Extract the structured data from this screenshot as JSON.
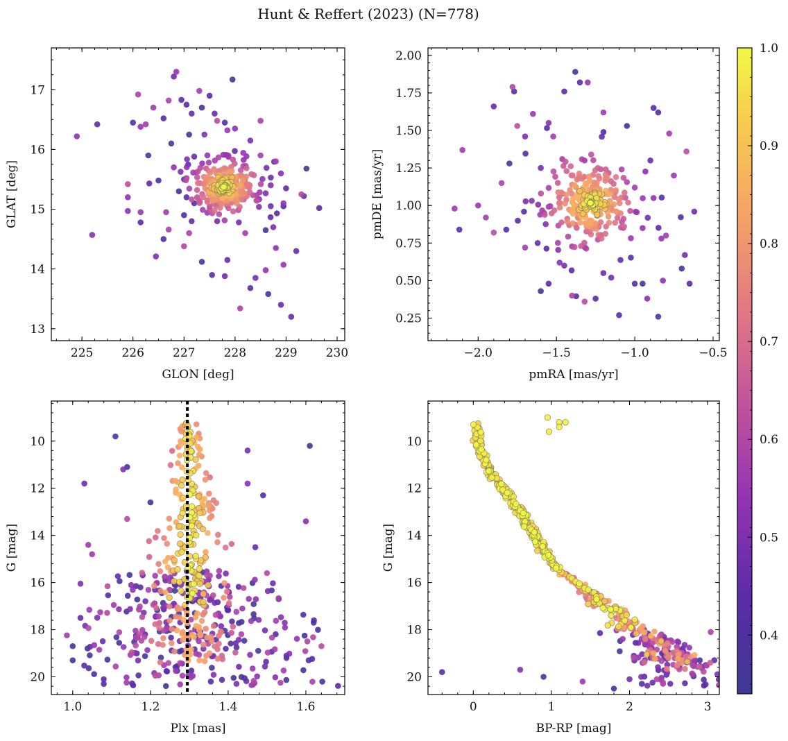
{
  "figure": {
    "title": "Hunt & Reffert (2023) (N=778)",
    "colorbar": {
      "min": 0.34,
      "max": 1.0,
      "ticks": [
        0.4,
        0.5,
        0.6,
        0.7,
        0.8,
        0.9,
        1.0
      ],
      "tick_labels": [
        "0.4",
        "0.5",
        "0.6",
        "0.7",
        "0.8",
        "0.9",
        "1.0"
      ],
      "colormap": "plasma"
    }
  },
  "chart_data": [
    {
      "id": "sky",
      "type": "scatter",
      "xlabel": "GLON [deg]",
      "ylabel": "GLAT [deg]",
      "xlim": [
        224.4,
        230.15
      ],
      "ylim": [
        12.8,
        17.7
      ],
      "xticks": [
        225,
        226,
        227,
        228,
        229,
        230
      ],
      "xtick_labels": [
        "225",
        "226",
        "227",
        "228",
        "229",
        "230"
      ],
      "yticks": [
        13,
        14,
        15,
        16,
        17
      ],
      "ytick_labels": [
        "13",
        "14",
        "15",
        "16",
        "17"
      ],
      "field_points": [
        [
          224.9,
          16.22
        ],
        [
          225.3,
          16.42
        ],
        [
          225.2,
          14.57
        ],
        [
          225.9,
          15.42
        ],
        [
          225.9,
          15.2
        ],
        [
          225.9,
          14.97
        ],
        [
          226.0,
          16.45
        ],
        [
          226.1,
          16.92
        ],
        [
          226.15,
          16.38
        ],
        [
          226.25,
          16.42
        ],
        [
          226.15,
          14.95
        ],
        [
          226.15,
          14.78
        ],
        [
          226.4,
          16.7
        ],
        [
          226.5,
          15.48
        ],
        [
          226.45,
          14.21
        ],
        [
          226.6,
          16.52
        ],
        [
          226.6,
          14.5
        ],
        [
          226.65,
          14.95
        ],
        [
          226.7,
          16.82
        ],
        [
          226.7,
          14.66
        ],
        [
          226.75,
          16.1
        ],
        [
          226.8,
          17.22
        ],
        [
          226.85,
          17.3
        ],
        [
          226.95,
          16.83
        ],
        [
          227.05,
          16.75
        ],
        [
          227.05,
          15.2
        ],
        [
          227.0,
          14.38
        ],
        [
          227.1,
          14.6
        ],
        [
          227.15,
          16.6
        ],
        [
          227.2,
          15.88
        ],
        [
          227.3,
          16.98
        ],
        [
          227.35,
          16.7
        ],
        [
          227.35,
          14.12
        ],
        [
          227.5,
          16.9
        ],
        [
          227.55,
          13.9
        ],
        [
          227.65,
          14.8
        ],
        [
          227.65,
          16.48
        ],
        [
          227.8,
          13.88
        ],
        [
          227.85,
          16.32
        ],
        [
          227.95,
          17.17
        ],
        [
          227.85,
          14.15
        ],
        [
          228.1,
          13.34
        ],
        [
          228.2,
          14.6
        ],
        [
          228.3,
          13.68
        ],
        [
          228.4,
          13.85
        ],
        [
          228.5,
          16.48
        ],
        [
          228.6,
          13.98
        ],
        [
          228.6,
          14.65
        ],
        [
          228.7,
          15.4
        ],
        [
          228.65,
          13.58
        ],
        [
          228.8,
          14.35
        ],
        [
          228.9,
          13.4
        ],
        [
          228.95,
          14.07
        ],
        [
          228.95,
          15.05
        ],
        [
          229.0,
          15.35
        ],
        [
          229.1,
          13.2
        ],
        [
          229.2,
          14.3
        ],
        [
          229.3,
          15.25
        ],
        [
          229.35,
          15.22
        ],
        [
          229.4,
          15.68
        ],
        [
          229.65,
          15.02
        ],
        [
          226.3,
          15.9
        ],
        [
          226.8,
          15.7
        ],
        [
          226.9,
          15.3
        ],
        [
          227.0,
          15.5
        ],
        [
          227.0,
          14.9
        ],
        [
          227.15,
          14.8
        ],
        [
          227.2,
          15.1
        ],
        [
          228.5,
          15.9
        ],
        [
          228.7,
          15.05
        ],
        [
          228.75,
          14.7
        ],
        [
          228.8,
          15.8
        ],
        [
          228.9,
          15.6
        ],
        [
          228.95,
          15.1
        ],
        [
          227.1,
          16.25
        ],
        [
          227.4,
          16.25
        ],
        [
          227.6,
          16.6
        ],
        [
          228.3,
          16.15
        ],
        [
          228.0,
          16.35
        ],
        [
          227.8,
          16.45
        ]
      ],
      "note": "field_points + auto-generated membership cloud; colors by probability"
    },
    {
      "id": "pm",
      "type": "scatter",
      "xlabel": "pmRA [mas/yr]",
      "ylabel": "pmDE [mas/yr]",
      "xlim": [
        -2.32,
        -0.46
      ],
      "ylim": [
        0.1,
        2.05
      ],
      "xticks": [
        -2.0,
        -1.5,
        -1.0,
        -0.5
      ],
      "xtick_labels": [
        "−2.0",
        "−1.5",
        "−1.0",
        "−0.5"
      ],
      "yticks": [
        0.25,
        0.5,
        0.75,
        1.0,
        1.25,
        1.5,
        1.75,
        2.0
      ],
      "ytick_labels": [
        "0.25",
        "0.50",
        "0.75",
        "1.00",
        "1.25",
        "1.50",
        "1.75",
        "2.00"
      ],
      "field_points": [
        [
          -2.15,
          0.98
        ],
        [
          -2.12,
          0.84
        ],
        [
          -2.1,
          1.37
        ],
        [
          -2.0,
          1.0
        ],
        [
          -1.95,
          0.92
        ],
        [
          -1.9,
          1.66
        ],
        [
          -1.82,
          0.84
        ],
        [
          -1.8,
          1.28
        ],
        [
          -1.78,
          1.79
        ],
        [
          -1.77,
          1.76
        ],
        [
          -1.75,
          1.53
        ],
        [
          -1.7,
          1.46
        ],
        [
          -1.65,
          1.61
        ],
        [
          -1.6,
          0.43
        ],
        [
          -1.55,
          1.55
        ],
        [
          -1.52,
          1.46
        ],
        [
          -1.45,
          1.76
        ],
        [
          -1.4,
          0.4
        ],
        [
          -1.38,
          1.89
        ],
        [
          -1.35,
          1.82
        ],
        [
          -1.32,
          0.36
        ],
        [
          -1.3,
          1.82
        ],
        [
          -1.25,
          0.38
        ],
        [
          -1.2,
          1.62
        ],
        [
          -1.15,
          0.52
        ],
        [
          -1.1,
          0.27
        ],
        [
          -1.05,
          1.53
        ],
        [
          -1.0,
          0.48
        ],
        [
          -0.95,
          0.48
        ],
        [
          -0.9,
          1.3
        ],
        [
          -0.88,
          1.65
        ],
        [
          -0.85,
          1.62
        ],
        [
          -0.83,
          0.78
        ],
        [
          -0.8,
          0.8
        ],
        [
          -0.78,
          1.48
        ],
        [
          -0.75,
          1.2
        ],
        [
          -0.7,
          0.58
        ],
        [
          -0.68,
          0.67
        ],
        [
          -0.67,
          1.36
        ],
        [
          -0.65,
          0.48
        ],
        [
          -0.62,
          0.96
        ],
        [
          -0.85,
          0.26
        ],
        [
          -0.82,
          0.5
        ],
        [
          -0.92,
          0.38
        ],
        [
          -1.48,
          0.62
        ],
        [
          -1.55,
          0.48
        ],
        [
          -1.7,
          0.72
        ],
        [
          -1.85,
          1.15
        ],
        [
          -1.9,
          0.82
        ],
        [
          -1.0,
          1.12
        ],
        [
          -0.95,
          0.85
        ],
        [
          -0.88,
          1.05
        ],
        [
          -1.6,
          1.25
        ],
        [
          -1.62,
          0.75
        ],
        [
          -1.45,
          0.6
        ],
        [
          -1.2,
          0.55
        ]
      ]
    },
    {
      "id": "plx",
      "type": "scatter",
      "xlabel": "Plx [mas]",
      "ylabel": "G [mag]",
      "xlim": [
        0.945,
        1.7
      ],
      "ylim": [
        20.75,
        8.3
      ],
      "xticks": [
        1.0,
        1.2,
        1.4,
        1.6
      ],
      "xtick_labels": [
        "1.0",
        "1.2",
        "1.4",
        "1.6"
      ],
      "yticks": [
        10,
        12,
        14,
        16,
        18,
        20
      ],
      "ytick_labels": [
        "10",
        "12",
        "14",
        "16",
        "18",
        "20"
      ],
      "mean_plx": 1.295,
      "field_points": [
        [
          1.11,
          9.8
        ],
        [
          1.03,
          11.8
        ],
        [
          1.14,
          11.1
        ],
        [
          1.13,
          11.2
        ],
        [
          1.04,
          14.4
        ],
        [
          1.05,
          14.8
        ],
        [
          1.02,
          16.05
        ],
        [
          1.6,
          13.4
        ],
        [
          1.61,
          10.2
        ],
        [
          1.62,
          17.7
        ],
        [
          1.64,
          18.7
        ],
        [
          1.55,
          19.2
        ],
        [
          1.55,
          19.1
        ],
        [
          1.45,
          10.4
        ],
        [
          1.49,
          12.3
        ],
        [
          1.0,
          19.3
        ],
        [
          1.0,
          18.7
        ],
        [
          1.02,
          17.5
        ],
        [
          1.08,
          20.3
        ],
        [
          1.08,
          20.1
        ],
        [
          1.14,
          13.3
        ],
        [
          1.2,
          12.6
        ],
        [
          1.45,
          11.8
        ],
        [
          1.47,
          14.5
        ],
        [
          1.5,
          15.6
        ],
        [
          1.53,
          16.7
        ]
      ]
    },
    {
      "id": "cmd",
      "type": "scatter",
      "xlabel": "BP-RP [mag]",
      "ylabel": "G [mag]",
      "xlim": [
        -0.58,
        3.15
      ],
      "ylim": [
        20.75,
        8.3
      ],
      "xticks": [
        0,
        1,
        2,
        3
      ],
      "xtick_labels": [
        "0",
        "1",
        "2",
        "3"
      ],
      "yticks": [
        10,
        12,
        14,
        16,
        18,
        20
      ],
      "ytick_labels": [
        "10",
        "12",
        "14",
        "16",
        "18",
        "20"
      ],
      "sequence": [
        [
          0.0,
          9.1
        ],
        [
          0.05,
          9.6
        ],
        [
          0.08,
          10.2
        ],
        [
          0.12,
          10.7
        ],
        [
          0.2,
          11.2
        ],
        [
          0.3,
          11.7
        ],
        [
          0.45,
          12.3
        ],
        [
          0.6,
          13.0
        ],
        [
          0.75,
          13.8
        ],
        [
          0.9,
          14.6
        ],
        [
          1.05,
          15.3
        ],
        [
          1.25,
          15.9
        ],
        [
          1.5,
          16.5
        ],
        [
          1.75,
          17.1
        ],
        [
          2.0,
          17.7
        ],
        [
          2.2,
          18.2
        ],
        [
          2.4,
          18.8
        ],
        [
          2.6,
          19.3
        ],
        [
          2.75,
          19.7
        ]
      ],
      "outliers": [
        [
          -0.4,
          19.8
        ],
        [
          0.6,
          19.7
        ],
        [
          0.95,
          9.0
        ],
        [
          1.1,
          9.2
        ],
        [
          1.1,
          9.4
        ],
        [
          1.18,
          9.2
        ],
        [
          0.97,
          9.6
        ],
        [
          1.8,
          20.5
        ],
        [
          1.4,
          20.2
        ],
        [
          0.9,
          20.0
        ],
        [
          2.0,
          20.1
        ],
        [
          2.35,
          20.1
        ],
        [
          2.15,
          20.0
        ],
        [
          2.98,
          19.5
        ],
        [
          2.9,
          19.3
        ]
      ]
    }
  ]
}
